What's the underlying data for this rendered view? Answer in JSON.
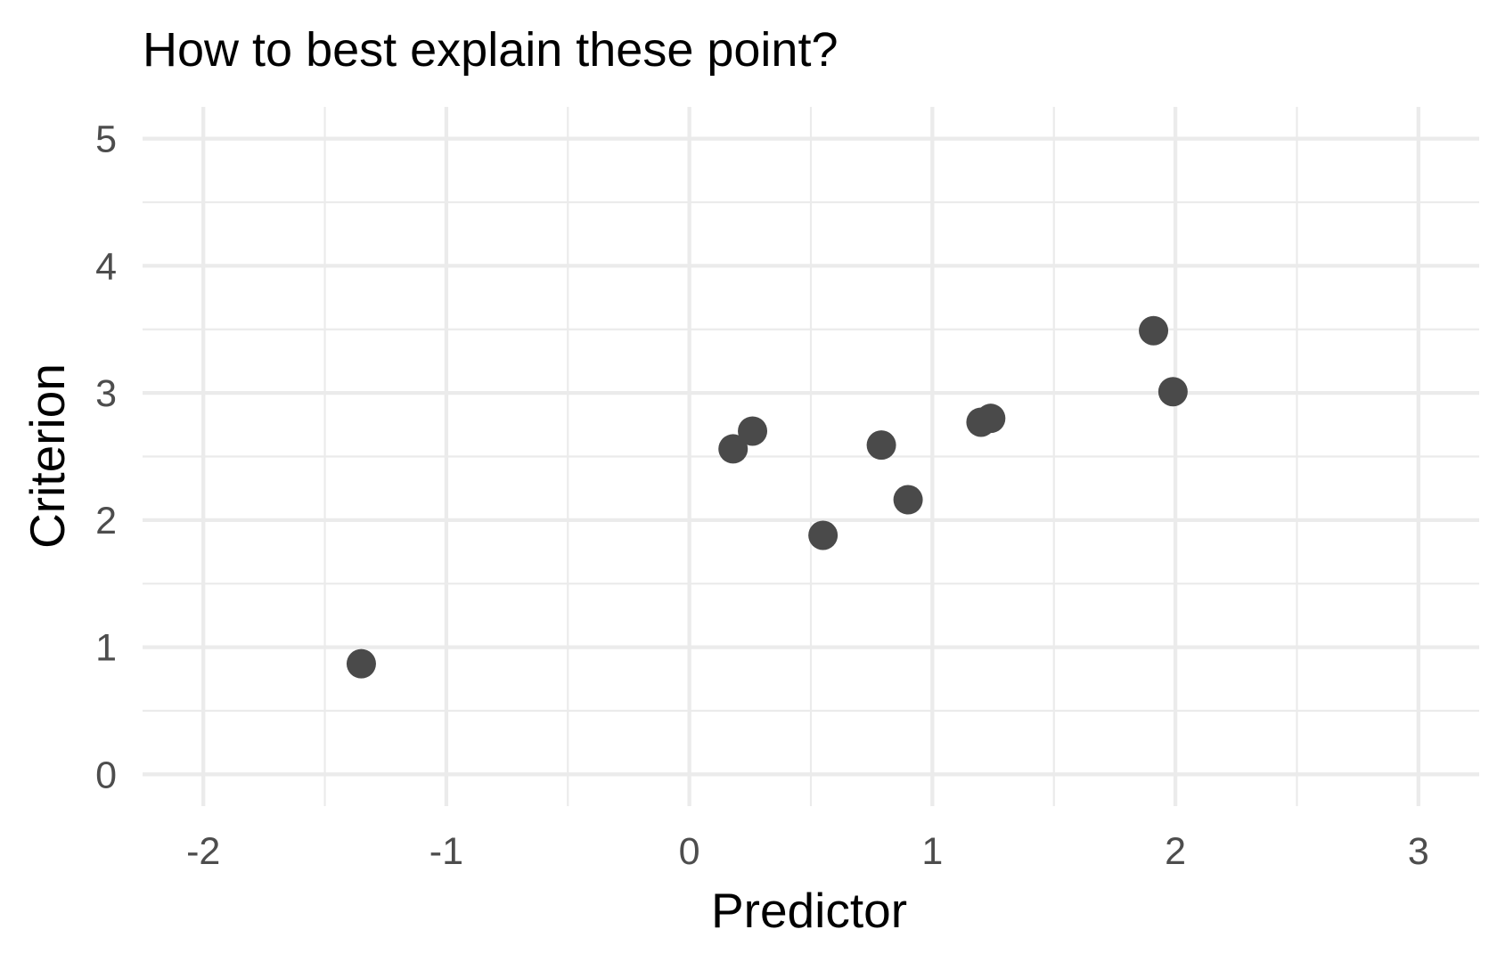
{
  "chart_data": {
    "type": "scatter",
    "title": "How to best explain these point?",
    "xlabel": "Predictor",
    "ylabel": "Criterion",
    "xlim": [
      -2.25,
      3.25
    ],
    "ylim": [
      -0.25,
      5.25
    ],
    "x_ticks": [
      -2,
      -1,
      0,
      1,
      2,
      3
    ],
    "x_tick_labels": [
      "-2",
      "-1",
      "0",
      "1",
      "2",
      "3"
    ],
    "y_ticks": [
      0,
      1,
      2,
      3,
      4,
      5
    ],
    "y_tick_labels": [
      "0",
      "1",
      "2",
      "3",
      "4",
      "5"
    ],
    "grid": true,
    "point_color": "#4a4a4a",
    "grid_color": "#ebebeb",
    "points": [
      {
        "x": -1.35,
        "y": 0.87
      },
      {
        "x": 0.18,
        "y": 2.56
      },
      {
        "x": 0.26,
        "y": 2.7
      },
      {
        "x": 0.55,
        "y": 1.88
      },
      {
        "x": 0.79,
        "y": 2.59
      },
      {
        "x": 0.9,
        "y": 2.16
      },
      {
        "x": 1.2,
        "y": 2.77
      },
      {
        "x": 1.24,
        "y": 2.8
      },
      {
        "x": 1.91,
        "y": 3.49
      },
      {
        "x": 1.99,
        "y": 3.01
      }
    ]
  }
}
